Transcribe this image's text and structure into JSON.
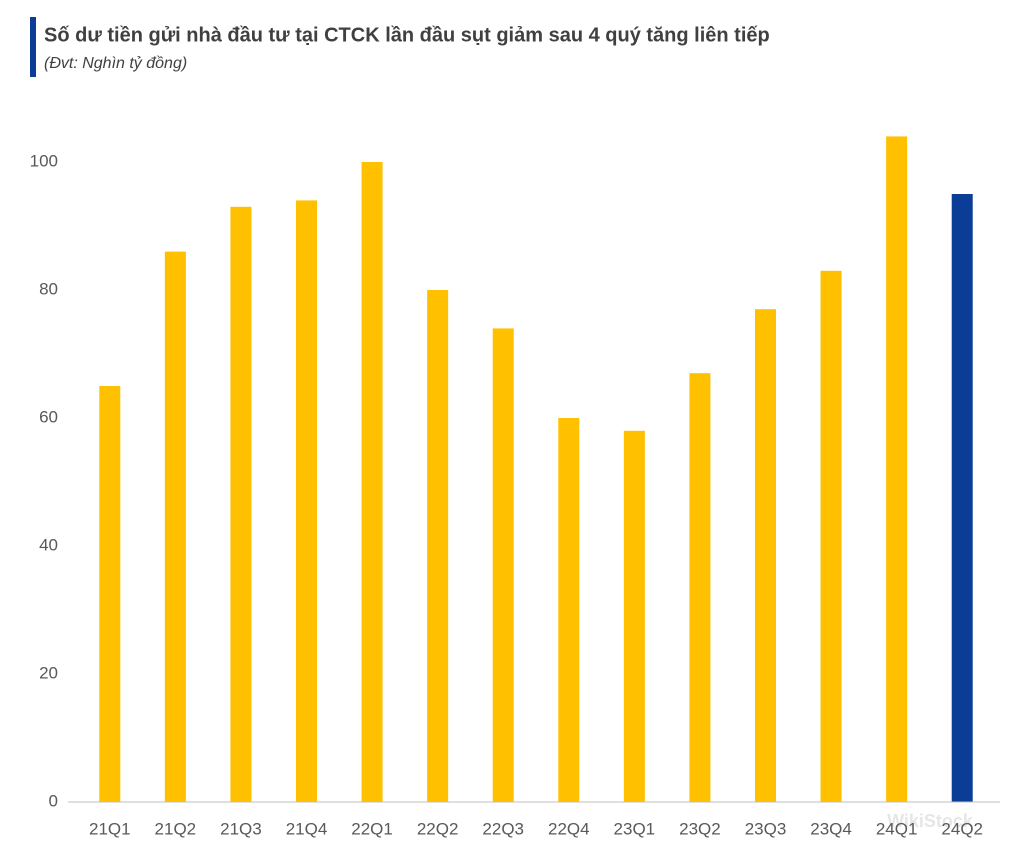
{
  "chart_data": {
    "type": "bar",
    "title": "Số dư tiền gửi nhà đầu tư tại CTCK lần đầu sụt giảm sau 4 quý tăng liên tiếp",
    "subtitle": "(Đvt: Nghìn tỷ đồng)",
    "categories": [
      "21Q1",
      "21Q2",
      "21Q3",
      "21Q4",
      "22Q1",
      "22Q2",
      "22Q3",
      "22Q4",
      "23Q1",
      "23Q2",
      "23Q3",
      "23Q4",
      "24Q1",
      "24Q2"
    ],
    "values": [
      65,
      86,
      93,
      94,
      100,
      80,
      74,
      60,
      58,
      67,
      77,
      83,
      104,
      95
    ],
    "colors": [
      "#FFC000",
      "#FFC000",
      "#FFC000",
      "#FFC000",
      "#FFC000",
      "#FFC000",
      "#FFC000",
      "#FFC000",
      "#FFC000",
      "#FFC000",
      "#FFC000",
      "#FFC000",
      "#FFC000",
      "#0B3D96"
    ],
    "ylim": [
      0,
      110
    ],
    "yticks": [
      0,
      20,
      40,
      60,
      80,
      100
    ],
    "grid": false,
    "watermark": "WikiStock"
  }
}
